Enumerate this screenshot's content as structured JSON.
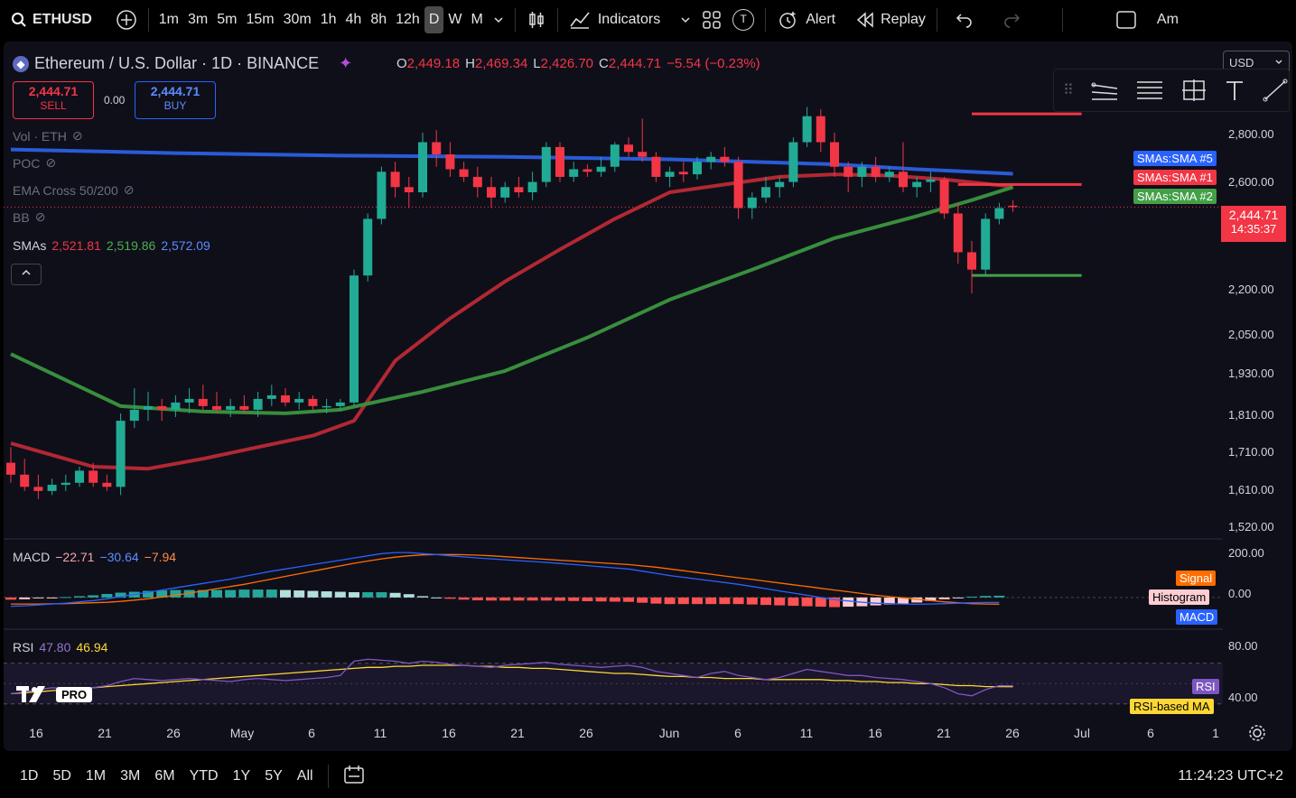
{
  "topbar": {
    "symbol": "ETHUSD",
    "timeframes": [
      "1m",
      "3m",
      "5m",
      "15m",
      "30m",
      "1h",
      "4h",
      "8h",
      "12h",
      "D",
      "W",
      "M"
    ],
    "active_timeframe": "D",
    "indicators_label": "Indicators",
    "alert_label": "Alert",
    "replay_label": "Replay",
    "template_badge": "T",
    "right_text": "Am"
  },
  "header": {
    "title": "Ethereum / U.S. Dollar · 1D · BINANCE",
    "o_label": "O",
    "o_value": "2,449.18",
    "h_label": "H",
    "h_value": "2,469.34",
    "l_label": "L",
    "l_value": "2,426.70",
    "c_label": "C",
    "c_value": "2,444.71",
    "change": "−5.54 (−0.23%)",
    "currency": "USD"
  },
  "trade": {
    "sell_price": "2,444.71",
    "sell_label": "SELL",
    "spread": "0.00",
    "buy_price": "2,444.71",
    "buy_label": "BUY"
  },
  "legends": {
    "vol": "Vol · ETH",
    "poc": "POC",
    "ema": "EMA Cross 50/200",
    "bb": "BB",
    "smas_label": "SMAs",
    "sma_values": [
      "2,521.81",
      "2,519.86",
      "2,572.09"
    ],
    "macd_label": "MACD",
    "macd_values": [
      "−22.71",
      "−30.64",
      "−7.94"
    ],
    "rsi_label": "RSI",
    "rsi_values": [
      "47.80",
      "46.94"
    ]
  },
  "price_axis": [
    "2,800.00",
    "2,600.00",
    "2,200.00",
    "2,050.00",
    "1,930.00",
    "1,810.00",
    "1,710.00",
    "1,610.00",
    "1,520.00"
  ],
  "current_price": {
    "value": "2,444.71",
    "countdown": "14:35:37"
  },
  "sma_tags": [
    "SMAs:SMA #5",
    "SMAs:SMA #1",
    "SMAs:SMA #2"
  ],
  "macd_axis": [
    "200.00",
    "0.00"
  ],
  "macd_tags": [
    "Signal",
    "Histogram",
    "MACD"
  ],
  "rsi_axis": [
    "80.00",
    "40.00"
  ],
  "rsi_tags": [
    "RSI",
    "RSI-based MA"
  ],
  "x_axis": [
    "16",
    "21",
    "26",
    "May",
    "6",
    "11",
    "16",
    "21",
    "26",
    "Jun",
    "6",
    "11",
    "16",
    "21",
    "26",
    "Jul",
    "6",
    "1"
  ],
  "watermark": "PRO",
  "bottombar": {
    "ranges": [
      "1D",
      "5D",
      "1M",
      "3M",
      "6M",
      "YTD",
      "1Y",
      "5Y",
      "All"
    ],
    "clock": "11:24:23 UTC+2"
  },
  "colors": {
    "up": "#22ab94",
    "down": "#f23645",
    "sma5": "#2a5bd7",
    "sma1": "#b22833",
    "sma2": "#388e3c",
    "macd": "#2962ff",
    "signal": "#ff6d00",
    "rsi": "#7e57c2",
    "rsi_ma": "#fdd835"
  },
  "chart_data": {
    "type": "candlestick",
    "price_ylim": [
      1480,
      2900
    ],
    "candles": [
      [
        1650,
        1690,
        1600,
        1620
      ],
      [
        1620,
        1660,
        1580,
        1590
      ],
      [
        1590,
        1620,
        1560,
        1580
      ],
      [
        1580,
        1610,
        1570,
        1595
      ],
      [
        1595,
        1620,
        1580,
        1600
      ],
      [
        1600,
        1640,
        1590,
        1630
      ],
      [
        1630,
        1650,
        1590,
        1600
      ],
      [
        1600,
        1620,
        1580,
        1590
      ],
      [
        1590,
        1780,
        1570,
        1760
      ],
      [
        1760,
        1850,
        1740,
        1790
      ],
      [
        1790,
        1840,
        1760,
        1800
      ],
      [
        1800,
        1820,
        1760,
        1790
      ],
      [
        1790,
        1830,
        1770,
        1810
      ],
      [
        1810,
        1850,
        1780,
        1820
      ],
      [
        1820,
        1860,
        1790,
        1800
      ],
      [
        1800,
        1840,
        1780,
        1790
      ],
      [
        1790,
        1820,
        1770,
        1800
      ],
      [
        1800,
        1830,
        1780,
        1790
      ],
      [
        1790,
        1840,
        1770,
        1820
      ],
      [
        1820,
        1860,
        1800,
        1830
      ],
      [
        1830,
        1850,
        1800,
        1810
      ],
      [
        1810,
        1840,
        1790,
        1820
      ],
      [
        1820,
        1830,
        1790,
        1800
      ],
      [
        1800,
        1820,
        1780,
        1800
      ],
      [
        1800,
        1820,
        1790,
        1810
      ],
      [
        1810,
        2220,
        1800,
        2200
      ],
      [
        2200,
        2420,
        2180,
        2400
      ],
      [
        2400,
        2600,
        2380,
        2580
      ],
      [
        2580,
        2620,
        2480,
        2520
      ],
      [
        2520,
        2560,
        2440,
        2500
      ],
      [
        2500,
        2740,
        2480,
        2700
      ],
      [
        2700,
        2750,
        2600,
        2650
      ],
      [
        2650,
        2700,
        2560,
        2590
      ],
      [
        2590,
        2620,
        2540,
        2560
      ],
      [
        2560,
        2600,
        2480,
        2520
      ],
      [
        2520,
        2560,
        2440,
        2480
      ],
      [
        2480,
        2540,
        2460,
        2520
      ],
      [
        2520,
        2560,
        2480,
        2500
      ],
      [
        2500,
        2580,
        2470,
        2540
      ],
      [
        2540,
        2700,
        2520,
        2680
      ],
      [
        2680,
        2700,
        2540,
        2560
      ],
      [
        2560,
        2620,
        2540,
        2590
      ],
      [
        2590,
        2610,
        2560,
        2580
      ],
      [
        2580,
        2640,
        2560,
        2600
      ],
      [
        2600,
        2700,
        2580,
        2690
      ],
      [
        2690,
        2720,
        2640,
        2660
      ],
      [
        2660,
        2800,
        2620,
        2640
      ],
      [
        2640,
        2660,
        2540,
        2560
      ],
      [
        2560,
        2600,
        2520,
        2580
      ],
      [
        2580,
        2620,
        2540,
        2570
      ],
      [
        2570,
        2640,
        2550,
        2620
      ],
      [
        2620,
        2660,
        2590,
        2640
      ],
      [
        2640,
        2680,
        2600,
        2620
      ],
      [
        2620,
        2640,
        2400,
        2440
      ],
      [
        2440,
        2500,
        2400,
        2480
      ],
      [
        2480,
        2560,
        2460,
        2520
      ],
      [
        2520,
        2560,
        2480,
        2540
      ],
      [
        2540,
        2720,
        2520,
        2700
      ],
      [
        2700,
        2850,
        2680,
        2810
      ],
      [
        2810,
        2840,
        2660,
        2700
      ],
      [
        2700,
        2740,
        2560,
        2600
      ],
      [
        2600,
        2620,
        2500,
        2560
      ],
      [
        2560,
        2620,
        2520,
        2600
      ],
      [
        2600,
        2640,
        2540,
        2560
      ],
      [
        2560,
        2600,
        2540,
        2580
      ],
      [
        2580,
        2700,
        2500,
        2520
      ],
      [
        2520,
        2560,
        2480,
        2540
      ],
      [
        2540,
        2580,
        2500,
        2550
      ],
      [
        2550,
        2560,
        2400,
        2420
      ],
      [
        2420,
        2460,
        2240,
        2280
      ],
      [
        2280,
        2320,
        2140,
        2220
      ],
      [
        2220,
        2420,
        2200,
        2400
      ],
      [
        2400,
        2460,
        2380,
        2440
      ],
      [
        2449,
        2469,
        2426,
        2444
      ]
    ],
    "sma5": [
      2650,
      2640,
      2635,
      2630,
      2625,
      2620,
      2615,
      2612,
      2610,
      2608,
      2606,
      2604,
      2603,
      2602,
      2601,
      2600,
      2599,
      2598,
      2596,
      2594
    ],
    "series": [
      {
        "name": "SMAs:SMA #5",
        "values": [
          2521.81
        ]
      },
      {
        "name": "SMAs:SMA #1",
        "values": [
          2519.86
        ]
      },
      {
        "name": "SMAs:SMA #2",
        "values": [
          2572.09
        ]
      }
    ],
    "sma_lines": {
      "sma5": [
        [
          0,
          2670
        ],
        [
          12,
          2655
        ],
        [
          24,
          2645
        ],
        [
          36,
          2640
        ],
        [
          48,
          2630
        ],
        [
          60,
          2610
        ],
        [
          66,
          2590
        ],
        [
          73,
          2572
        ]
      ],
      "sma1": [
        [
          0,
          1700
        ],
        [
          6,
          1640
        ],
        [
          10,
          1635
        ],
        [
          14,
          1660
        ],
        [
          18,
          1690
        ],
        [
          22,
          1720
        ],
        [
          25,
          1760
        ],
        [
          28,
          1930
        ],
        [
          32,
          2060
        ],
        [
          36,
          2180
        ],
        [
          40,
          2290
        ],
        [
          44,
          2400
        ],
        [
          48,
          2500
        ],
        [
          52,
          2530
        ],
        [
          56,
          2560
        ],
        [
          60,
          2570
        ],
        [
          64,
          2565
        ],
        [
          68,
          2550
        ],
        [
          73,
          2522
        ]
      ],
      "sma2": [
        [
          0,
          1950
        ],
        [
          8,
          1800
        ],
        [
          14,
          1785
        ],
        [
          20,
          1780
        ],
        [
          24,
          1790
        ],
        [
          30,
          1840
        ],
        [
          36,
          1900
        ],
        [
          42,
          2000
        ],
        [
          48,
          2120
        ],
        [
          54,
          2220
        ],
        [
          60,
          2330
        ],
        [
          66,
          2410
        ],
        [
          70,
          2470
        ],
        [
          73,
          2520
        ]
      ]
    },
    "hlines": [
      {
        "y": 2820,
        "x0": 70,
        "x1": 78,
        "color": "#f23645"
      },
      {
        "y": 2530,
        "x0": 69,
        "x1": 78,
        "color": "#f23645"
      },
      {
        "y": 2200,
        "x0": 70,
        "x1": 78,
        "color": "#43a047"
      }
    ],
    "macd": [
      -40,
      -38,
      -34,
      -30,
      -26,
      -20,
      -14,
      -6,
      4,
      14,
      24,
      34,
      44,
      54,
      64,
      74,
      84,
      96,
      108,
      120,
      130,
      140,
      150,
      160,
      170,
      180,
      190,
      200,
      205,
      205,
      200,
      196,
      190,
      185,
      180,
      176,
      172,
      168,
      164,
      160,
      155,
      150,
      145,
      140,
      135,
      130,
      120,
      110,
      100,
      92,
      84,
      76,
      68,
      60,
      50,
      40,
      30,
      20,
      10,
      0,
      -10,
      -16,
      -22,
      -26,
      -28,
      -30,
      -31,
      -30,
      -28,
      -26,
      -24,
      -23,
      -22.71
    ],
    "signal": [
      -30,
      -30,
      -30,
      -29,
      -28,
      -26,
      -24,
      -22,
      -18,
      -12,
      -6,
      2,
      10,
      20,
      30,
      40,
      50,
      60,
      72,
      84,
      96,
      108,
      120,
      132,
      144,
      156,
      166,
      176,
      184,
      190,
      194,
      196,
      196,
      195,
      193,
      190,
      186,
      182,
      178,
      174,
      170,
      166,
      162,
      158,
      154,
      150,
      144,
      138,
      130,
      122,
      114,
      106,
      98,
      90,
      82,
      74,
      66,
      58,
      50,
      42,
      34,
      26,
      18,
      10,
      4,
      -2,
      -8,
      -14,
      -20,
      -24,
      -28,
      -30,
      -30.64
    ],
    "macd_ylim": [
      -120,
      230
    ],
    "rsi": [
      40,
      42,
      44,
      46,
      45,
      44,
      46,
      48,
      52,
      55,
      54,
      53,
      54,
      55,
      54,
      53,
      52,
      54,
      55,
      54,
      53,
      54,
      55,
      56,
      58,
      72,
      74,
      73,
      72,
      70,
      72,
      71,
      69,
      68,
      67,
      66,
      68,
      69,
      70,
      71,
      69,
      68,
      67,
      66,
      67,
      68,
      66,
      62,
      60,
      58,
      56,
      60,
      62,
      58,
      56,
      54,
      56,
      60,
      64,
      62,
      60,
      58,
      58,
      56,
      55,
      54,
      52,
      50,
      46,
      40,
      38,
      44,
      48,
      47.8
    ],
    "rsi_ma": [
      40,
      41,
      42,
      43,
      44,
      45,
      46,
      47,
      48,
      49,
      50,
      51,
      52,
      53,
      54,
      55,
      56,
      57,
      58,
      59,
      60,
      61,
      62,
      63,
      64,
      65,
      66,
      66,
      67,
      67,
      68,
      68,
      68,
      68,
      67,
      67,
      66,
      66,
      65,
      65,
      64,
      63,
      62,
      61,
      60,
      60,
      59,
      58,
      57,
      57,
      56,
      56,
      55,
      55,
      55,
      54,
      54,
      54,
      54,
      54,
      53,
      53,
      52,
      52,
      51,
      51,
      50,
      50,
      49,
      48,
      48,
      47,
      47,
      46.94
    ],
    "rsi_ylim": [
      20,
      100
    ]
  }
}
